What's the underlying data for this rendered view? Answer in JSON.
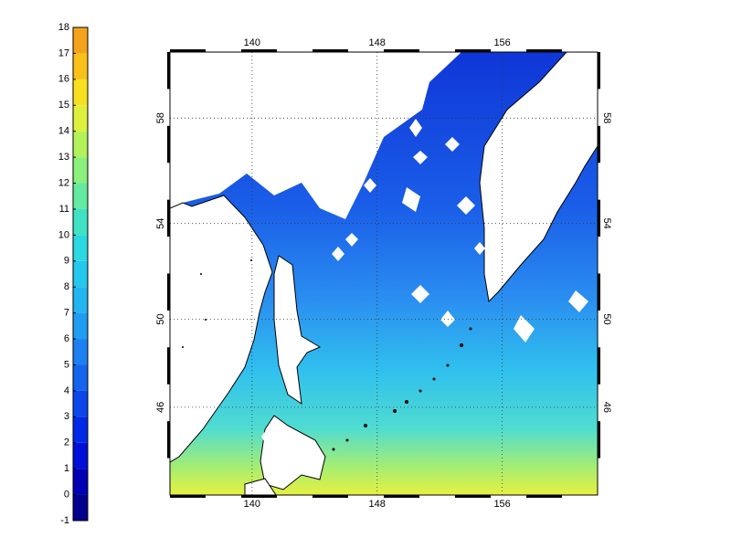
{
  "colorbar": {
    "ticks": [
      -1,
      0,
      1,
      2,
      3,
      4,
      5,
      6,
      7,
      8,
      9,
      10,
      11,
      12,
      13,
      14,
      15,
      16,
      17,
      18
    ],
    "colors": [
      "#00008c",
      "#0000b4",
      "#0010d8",
      "#0028e6",
      "#0a46ea",
      "#1464ee",
      "#1c80f0",
      "#209cf2",
      "#22b4f0",
      "#24c8ec",
      "#2ad8e0",
      "#40e2c4",
      "#64eaa0",
      "#8cf07c",
      "#b4f25a",
      "#dcf03c",
      "#f8e020",
      "#f8c018",
      "#f4a41c"
    ]
  },
  "map": {
    "lonlim": [
      134.75,
      162.1
    ],
    "latlim": [
      41.7,
      60.3
    ],
    "lon_ticks": [
      140,
      148,
      156
    ],
    "lat_ticks": [
      58,
      54,
      50,
      46
    ],
    "grid": true
  }
}
